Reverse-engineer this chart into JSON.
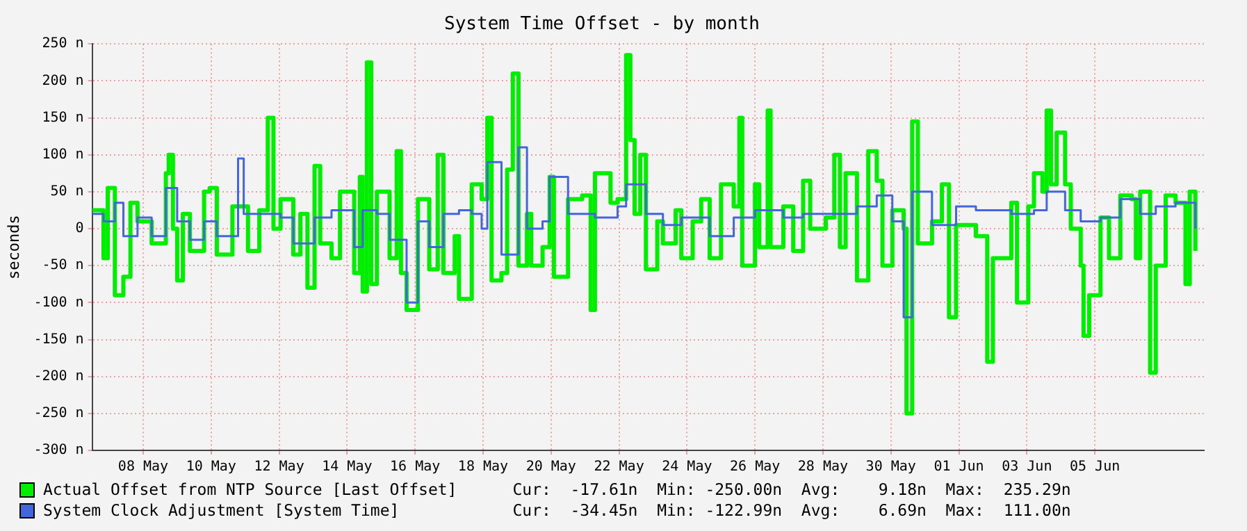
{
  "chart_data": {
    "type": "step",
    "title": "System Time Offset - by month",
    "ylabel": "seconds",
    "xlim": [
      "--05-06T12:00",
      "--06-08T05:00"
    ],
    "xticks": [
      {
        "value": "--05-08",
        "label": "08 May"
      },
      {
        "value": "--05-10",
        "label": "10 May"
      },
      {
        "value": "--05-12",
        "label": "12 May"
      },
      {
        "value": "--05-14",
        "label": "14 May"
      },
      {
        "value": "--05-16",
        "label": "16 May"
      },
      {
        "value": "--05-18",
        "label": "18 May"
      },
      {
        "value": "--05-20",
        "label": "20 May"
      },
      {
        "value": "--05-22",
        "label": "22 May"
      },
      {
        "value": "--05-24",
        "label": "24 May"
      },
      {
        "value": "--05-26",
        "label": "26 May"
      },
      {
        "value": "--05-28",
        "label": "28 May"
      },
      {
        "value": "--05-30",
        "label": "30 May"
      },
      {
        "value": "--06-01",
        "label": "01 Jun"
      },
      {
        "value": "--06-03",
        "label": "03 Jun"
      },
      {
        "value": "--06-05",
        "label": "05 Jun"
      }
    ],
    "ylim": [
      -300,
      250
    ],
    "yticks": [
      {
        "value": -300,
        "label": "-300 n"
      },
      {
        "value": -250,
        "label": "-250 n"
      },
      {
        "value": -200,
        "label": "-200 n"
      },
      {
        "value": -150,
        "label": "-150 n"
      },
      {
        "value": -100,
        "label": "-100 n"
      },
      {
        "value": -50,
        "label": "-50 n"
      },
      0,
      {
        "value": 50,
        "label": "50 n"
      },
      {
        "value": 100,
        "label": "100 n"
      },
      {
        "value": 150,
        "label": "150 n"
      },
      {
        "value": 200,
        "label": "200 n"
      },
      {
        "value": 250,
        "label": "250 n"
      }
    ],
    "grid": true,
    "legend": "bottom",
    "annotations": [
      "Cur:  -17.61n  Min: -250.00n  Avg:    9.18n  Max:  235.29n",
      "Cur:  -34.45n  Min: -122.99n  Avg:    6.69n  Max:  111.00n"
    ],
    "series": [
      {
        "name": "Actual Offset from NTP Source [Last Offset]",
        "color": "#00ee00",
        "x": [
          "--05-06T12:00",
          "--05-06T20:00",
          "--05-06T23:00",
          "--05-07T04:00",
          "--05-07T10:00",
          "--05-07T15:00",
          "--05-07T20:00",
          "--05-08T06:00",
          "--05-08T16:00",
          "--05-08T18:00",
          "--05-08T21:00",
          "--05-09T00:00",
          "--05-09T04:00",
          "--05-09T09:00",
          "--05-09T19:00",
          "--05-09T23:00",
          "--05-10T04:00",
          "--05-10T15:00",
          "--05-11T02:00",
          "--05-11T10:00",
          "--05-11T16:00",
          "--05-11T20:00",
          "--05-12T01:00",
          "--05-12T10:00",
          "--05-12T15:00",
          "--05-12T20:00",
          "--05-13T01:00",
          "--05-13T05:00",
          "--05-13T13:00",
          "--05-13T19:00",
          "--05-14T05:00",
          "--05-14T09:00",
          "--05-14T11:00",
          "--05-14T14:00",
          "--05-14T17:00",
          "--05-14T21:00",
          "--05-15T06:00",
          "--05-15T11:00",
          "--05-15T14:00",
          "--05-15T18:00",
          "--05-16T02:00",
          "--05-16T10:00",
          "--05-16T16:00",
          "--05-16T20:00",
          "--05-17T04:00",
          "--05-17T07:00",
          "--05-17T16:00",
          "--05-17T23:00",
          "--05-18T03:00",
          "--05-18T06:00",
          "--05-18T13:00",
          "--05-18T17:00",
          "--05-18T21:00",
          "--05-19T01:00",
          "--05-19T07:00",
          "--05-19T10:00",
          "--05-19T18:00",
          "--05-19T23:00",
          "--05-20T02:00",
          "--05-20T12:00",
          "--05-20T22:00",
          "--05-21T04:00",
          "--05-21T07:00",
          "--05-21T18:00",
          "--05-21T23:00",
          "--05-22T05:00",
          "--05-22T08:00",
          "--05-22T11:00",
          "--05-22T15:00",
          "--05-22T19:00",
          "--05-23T03:00",
          "--05-23T07:00",
          "--05-23T16:00",
          "--05-23T20:00",
          "--05-24T04:00",
          "--05-24T10:00",
          "--05-24T16:00",
          "--05-25T00:00",
          "--05-25T09:00",
          "--05-25T13:00",
          "--05-25T15:00",
          "--05-26T00:00",
          "--05-26T03:00",
          "--05-26T09:00",
          "--05-26T11:00",
          "--05-26T20:00",
          "--05-27T03:00",
          "--05-27T10:00",
          "--05-27T15:00",
          "--05-28T02:00",
          "--05-28T08:00",
          "--05-28T12:00",
          "--05-28T16:00",
          "--05-29T00:00",
          "--05-29T08:00",
          "--05-29T14:00",
          "--05-29T18:00",
          "--05-30T01:00",
          "--05-30T09:00",
          "--05-30T11:00",
          "--05-30T15:00",
          "--05-30T19:00",
          "--05-31T05:00",
          "--05-31T12:00",
          "--05-31T17:00",
          "--05-31T22:00",
          "--06-01T12:00",
          "--06-01T20:00",
          "--06-02T00:00",
          "--06-02T13:00",
          "--06-02T17:00",
          "--06-03T01:00",
          "--06-03T05:00",
          "--06-03T11:00",
          "--06-03T14:00",
          "--06-03T17:00",
          "--06-03T21:00",
          "--06-04T03:00",
          "--06-04T07:00",
          "--06-04T14:00",
          "--06-04T16:00",
          "--06-04T20:00",
          "--06-05T04:00",
          "--06-05T10:00",
          "--06-05T18:00",
          "--06-06T02:00",
          "--06-06T05:00",
          "--06-06T08:00",
          "--06-06T15:00",
          "--06-06T19:00",
          "--06-07T02:00",
          "--06-07T09:00",
          "--06-07T16:00",
          "--06-07T19:00",
          "--06-07T23:00"
        ],
        "values": [
          25,
          -40,
          55,
          -90,
          -65,
          35,
          10,
          -20,
          75,
          100,
          0,
          -70,
          20,
          -30,
          50,
          55,
          -35,
          30,
          -30,
          25,
          150,
          0,
          40,
          -35,
          20,
          -80,
          85,
          -20,
          -40,
          50,
          -60,
          70,
          -85,
          225,
          -75,
          50,
          -40,
          105,
          -60,
          -110,
          40,
          -55,
          100,
          -60,
          -10,
          -95,
          60,
          40,
          150,
          -70,
          -60,
          80,
          210,
          -50,
          20,
          -50,
          -25,
          70,
          -65,
          40,
          45,
          -110,
          75,
          35,
          40,
          235,
          120,
          20,
          100,
          -55,
          10,
          -20,
          25,
          -40,
          10,
          40,
          -40,
          60,
          30,
          150,
          -50,
          60,
          -25,
          160,
          -25,
          30,
          -30,
          65,
          0,
          15,
          100,
          -25,
          75,
          -70,
          105,
          65,
          -50,
          25,
          0,
          -250,
          145,
          -20,
          10,
          60,
          -120,
          5,
          -10,
          -180,
          -40,
          35,
          -100,
          30,
          75,
          50,
          160,
          60,
          130,
          60,
          0,
          -50,
          -145,
          -90,
          15,
          -40,
          45,
          40,
          -40,
          50,
          -195,
          -50,
          45,
          35,
          -75,
          50,
          -30
        ]
      },
      {
        "name": "System Clock Adjustment [System Time]",
        "color": "#4466dd",
        "x": [
          "--05-06T12:00",
          "--05-06T20:00",
          "--05-07T04:00",
          "--05-07T10:00",
          "--05-07T20:00",
          "--05-08T06:00",
          "--05-08T16:00",
          "--05-09T00:00",
          "--05-09T09:00",
          "--05-09T19:00",
          "--05-10T04:00",
          "--05-10T19:00",
          "--05-10T23:00",
          "--05-11T10:00",
          "--05-12T01:00",
          "--05-12T10:00",
          "--05-13T01:00",
          "--05-13T13:00",
          "--05-14T05:00",
          "--05-14T11:00",
          "--05-14T21:00",
          "--05-15T06:00",
          "--05-15T18:00",
          "--05-16T02:00",
          "--05-16T10:00",
          "--05-16T20:00",
          "--05-17T07:00",
          "--05-17T16:00",
          "--05-17T23:00",
          "--05-18T03:00",
          "--05-18T13:00",
          "--05-19T01:00",
          "--05-19T07:00",
          "--05-19T18:00",
          "--05-19T23:00",
          "--05-20T12:00",
          "--05-21T07:00",
          "--05-21T23:00",
          "--05-22T05:00",
          "--05-22T19:00",
          "--05-23T07:00",
          "--05-23T20:00",
          "--05-24T16:00",
          "--05-25T09:00",
          "--05-26T00:00",
          "--05-26T20:00",
          "--05-27T10:00",
          "--05-28T08:00",
          "--05-29T00:00",
          "--05-29T14:00",
          "--05-30T01:00",
          "--05-30T09:00",
          "--05-30T15:00",
          "--05-31T05:00",
          "--05-31T22:00",
          "--06-01T12:00",
          "--06-02T00:00",
          "--06-02T13:00",
          "--06-03T05:00",
          "--06-03T14:00",
          "--06-04T03:00",
          "--06-04T14:00",
          "--06-05T04:00",
          "--06-05T18:00",
          "--06-06T08:00",
          "--06-06T19:00",
          "--06-07T09:00",
          "--06-07T23:00"
        ],
        "values": [
          20,
          10,
          35,
          -10,
          15,
          -10,
          55,
          10,
          -15,
          10,
          -10,
          95,
          20,
          20,
          15,
          -20,
          15,
          25,
          -25,
          25,
          20,
          -15,
          -100,
          10,
          -25,
          20,
          25,
          20,
          0,
          90,
          -35,
          110,
          0,
          10,
          70,
          20,
          15,
          30,
          60,
          20,
          5,
          15,
          -10,
          15,
          25,
          15,
          20,
          20,
          30,
          45,
          10,
          -120,
          50,
          5,
          30,
          25,
          25,
          20,
          25,
          50,
          25,
          10,
          15,
          40,
          20,
          30,
          35,
          0
        ]
      }
    ]
  }
}
